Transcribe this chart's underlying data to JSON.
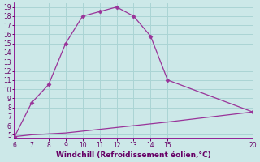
{
  "xlabel": "Windchill (Refroidissement éolien,°C)",
  "x_main": [
    6,
    7,
    8,
    9,
    10,
    11,
    12,
    13,
    14,
    15,
    20
  ],
  "y_main": [
    4.8,
    8.5,
    10.5,
    15.0,
    18.0,
    18.5,
    19.0,
    18.0,
    15.8,
    11.0,
    7.5
  ],
  "x_base": [
    6,
    7,
    8,
    9,
    10,
    11,
    12,
    13,
    14,
    15,
    20
  ],
  "y_base": [
    4.8,
    5.0,
    5.1,
    5.2,
    5.4,
    5.6,
    5.8,
    6.0,
    6.2,
    6.4,
    7.5
  ],
  "line_color": "#993399",
  "bg_color": "#cce8e8",
  "grid_color": "#aad4d4",
  "xlim": [
    6,
    20
  ],
  "ylim": [
    4.6,
    19.4
  ],
  "xticks": [
    6,
    7,
    8,
    9,
    10,
    11,
    12,
    13,
    14,
    15,
    20
  ],
  "yticks": [
    5,
    6,
    7,
    8,
    9,
    10,
    11,
    12,
    13,
    14,
    15,
    16,
    17,
    18,
    19
  ],
  "tick_color": "#660066",
  "label_color": "#660066",
  "spine_color": "#880088"
}
